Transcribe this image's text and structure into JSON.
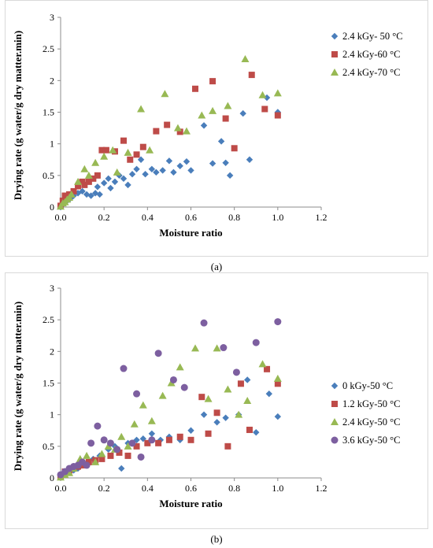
{
  "chart_data": [
    {
      "type": "scatter",
      "caption": "(a)",
      "xlabel": "Moisture ratio",
      "ylabel": "Drying rate (g water/g dry matter.min)",
      "xlim": [
        0,
        1.2
      ],
      "ylim": [
        0,
        3
      ],
      "xticks": [
        "0.0",
        "0.2",
        "0.4",
        "0.6",
        "0.8",
        "1.0",
        "1.2"
      ],
      "yticks": [
        "0",
        "0.5",
        "1",
        "1.5",
        "2",
        "2.5",
        "3"
      ],
      "grid": false,
      "legend": "right",
      "series": [
        {
          "name": "2.4 kGy- 50 °C",
          "marker": "diamond",
          "color": "#4a7ebb",
          "points": [
            [
              0.0,
              0.0
            ],
            [
              0.01,
              0.04
            ],
            [
              0.02,
              0.08
            ],
            [
              0.03,
              0.1
            ],
            [
              0.04,
              0.12
            ],
            [
              0.05,
              0.15
            ],
            [
              0.06,
              0.18
            ],
            [
              0.08,
              0.22
            ],
            [
              0.1,
              0.25
            ],
            [
              0.12,
              0.2
            ],
            [
              0.14,
              0.18
            ],
            [
              0.16,
              0.22
            ],
            [
              0.17,
              0.32
            ],
            [
              0.18,
              0.2
            ],
            [
              0.2,
              0.38
            ],
            [
              0.22,
              0.45
            ],
            [
              0.23,
              0.3
            ],
            [
              0.25,
              0.4
            ],
            [
              0.27,
              0.5
            ],
            [
              0.29,
              0.45
            ],
            [
              0.31,
              0.35
            ],
            [
              0.33,
              0.52
            ],
            [
              0.35,
              0.6
            ],
            [
              0.37,
              0.75
            ],
            [
              0.39,
              0.52
            ],
            [
              0.42,
              0.6
            ],
            [
              0.44,
              0.55
            ],
            [
              0.47,
              0.58
            ],
            [
              0.5,
              0.73
            ],
            [
              0.52,
              0.55
            ],
            [
              0.55,
              0.65
            ],
            [
              0.58,
              0.72
            ],
            [
              0.6,
              0.58
            ],
            [
              0.66,
              1.29
            ],
            [
              0.7,
              0.69
            ],
            [
              0.74,
              1.04
            ],
            [
              0.76,
              0.7
            ],
            [
              0.78,
              0.5
            ],
            [
              0.84,
              1.48
            ],
            [
              0.87,
              0.75
            ],
            [
              0.95,
              1.73
            ],
            [
              1.0,
              1.5
            ]
          ]
        },
        {
          "name": "2.4 kGy-60 °C",
          "marker": "square",
          "color": "#be4b48",
          "points": [
            [
              0.0,
              0.02
            ],
            [
              0.01,
              0.1
            ],
            [
              0.02,
              0.18
            ],
            [
              0.04,
              0.2
            ],
            [
              0.06,
              0.25
            ],
            [
              0.08,
              0.33
            ],
            [
              0.1,
              0.4
            ],
            [
              0.11,
              0.35
            ],
            [
              0.13,
              0.4
            ],
            [
              0.15,
              0.45
            ],
            [
              0.17,
              0.5
            ],
            [
              0.19,
              0.9
            ],
            [
              0.21,
              0.9
            ],
            [
              0.25,
              0.88
            ],
            [
              0.29,
              1.05
            ],
            [
              0.32,
              0.75
            ],
            [
              0.35,
              0.83
            ],
            [
              0.38,
              0.95
            ],
            [
              0.44,
              1.2
            ],
            [
              0.49,
              1.3
            ],
            [
              0.55,
              1.19
            ],
            [
              0.62,
              1.87
            ],
            [
              0.7,
              1.99
            ],
            [
              0.76,
              1.4
            ],
            [
              0.8,
              0.93
            ],
            [
              0.88,
              2.09
            ],
            [
              0.94,
              1.55
            ],
            [
              1.0,
              1.45
            ]
          ]
        },
        {
          "name": "2.4 kGy-70 °C",
          "marker": "triangle",
          "color": "#98b954",
          "points": [
            [
              0.0,
              0.01
            ],
            [
              0.01,
              0.06
            ],
            [
              0.02,
              0.08
            ],
            [
              0.03,
              0.12
            ],
            [
              0.04,
              0.15
            ],
            [
              0.05,
              0.2
            ],
            [
              0.08,
              0.4
            ],
            [
              0.11,
              0.6
            ],
            [
              0.13,
              0.5
            ],
            [
              0.16,
              0.7
            ],
            [
              0.2,
              0.8
            ],
            [
              0.24,
              0.9
            ],
            [
              0.26,
              0.55
            ],
            [
              0.31,
              0.86
            ],
            [
              0.37,
              1.55
            ],
            [
              0.41,
              0.9
            ],
            [
              0.48,
              1.79
            ],
            [
              0.54,
              1.25
            ],
            [
              0.58,
              1.2
            ],
            [
              0.65,
              1.45
            ],
            [
              0.7,
              1.52
            ],
            [
              0.77,
              1.6
            ],
            [
              0.85,
              2.34
            ],
            [
              0.93,
              1.77
            ],
            [
              1.0,
              1.8
            ]
          ]
        }
      ]
    },
    {
      "type": "scatter",
      "caption": "(b)",
      "xlabel": "Moisture ratio",
      "ylabel": "Drying rate (g water/g dry matter.min)",
      "xlim": [
        0,
        1.2
      ],
      "ylim": [
        0,
        3
      ],
      "xticks": [
        "0.0",
        "0.2",
        "0.4",
        "0.6",
        "0.8",
        "1.0",
        "1.2"
      ],
      "yticks": [
        "0",
        "0.5",
        "1",
        "1.5",
        "2",
        "2.5",
        "3"
      ],
      "grid": false,
      "legend": "right",
      "series": [
        {
          "name": "0 kGy-50 °C",
          "marker": "diamond",
          "color": "#4a7ebb",
          "points": [
            [
              0.0,
              0.02
            ],
            [
              0.02,
              0.05
            ],
            [
              0.04,
              0.08
            ],
            [
              0.06,
              0.12
            ],
            [
              0.08,
              0.15
            ],
            [
              0.1,
              0.2
            ],
            [
              0.12,
              0.22
            ],
            [
              0.15,
              0.3
            ],
            [
              0.18,
              0.35
            ],
            [
              0.22,
              0.45
            ],
            [
              0.25,
              0.5
            ],
            [
              0.28,
              0.15
            ],
            [
              0.31,
              0.55
            ],
            [
              0.35,
              0.6
            ],
            [
              0.38,
              0.62
            ],
            [
              0.42,
              0.7
            ],
            [
              0.46,
              0.6
            ],
            [
              0.5,
              0.65
            ],
            [
              0.55,
              0.6
            ],
            [
              0.6,
              0.75
            ],
            [
              0.66,
              1.0
            ],
            [
              0.72,
              0.88
            ],
            [
              0.76,
              0.95
            ],
            [
              0.82,
              1.0
            ],
            [
              0.86,
              1.55
            ],
            [
              0.9,
              0.72
            ],
            [
              0.96,
              1.33
            ],
            [
              1.0,
              0.97
            ]
          ]
        },
        {
          "name": "1.2 kGy-50 °C",
          "marker": "square",
          "color": "#be4b48",
          "points": [
            [
              0.0,
              0.02
            ],
            [
              0.02,
              0.1
            ],
            [
              0.04,
              0.12
            ],
            [
              0.06,
              0.15
            ],
            [
              0.08,
              0.18
            ],
            [
              0.1,
              0.2
            ],
            [
              0.13,
              0.25
            ],
            [
              0.16,
              0.28
            ],
            [
              0.19,
              0.3
            ],
            [
              0.23,
              0.35
            ],
            [
              0.27,
              0.4
            ],
            [
              0.31,
              0.35
            ],
            [
              0.35,
              0.5
            ],
            [
              0.4,
              0.55
            ],
            [
              0.45,
              0.55
            ],
            [
              0.5,
              0.6
            ],
            [
              0.55,
              0.65
            ],
            [
              0.6,
              0.6
            ],
            [
              0.65,
              1.28
            ],
            [
              0.68,
              0.7
            ],
            [
              0.72,
              1.03
            ],
            [
              0.77,
              0.5
            ],
            [
              0.83,
              1.49
            ],
            [
              0.87,
              0.76
            ],
            [
              0.95,
              1.72
            ],
            [
              1.0,
              1.49
            ]
          ]
        },
        {
          "name": "2.4 kGy-50 °C",
          "marker": "triangle",
          "color": "#98b954",
          "points": [
            [
              0.0,
              0.01
            ],
            [
              0.02,
              0.05
            ],
            [
              0.04,
              0.08
            ],
            [
              0.06,
              0.15
            ],
            [
              0.09,
              0.3
            ],
            [
              0.12,
              0.35
            ],
            [
              0.16,
              0.25
            ],
            [
              0.19,
              0.38
            ],
            [
              0.22,
              0.5
            ],
            [
              0.25,
              0.45
            ],
            [
              0.28,
              0.65
            ],
            [
              0.31,
              0.5
            ],
            [
              0.34,
              0.85
            ],
            [
              0.38,
              1.15
            ],
            [
              0.42,
              0.9
            ],
            [
              0.47,
              1.3
            ],
            [
              0.51,
              1.5
            ],
            [
              0.55,
              1.75
            ],
            [
              0.62,
              2.05
            ],
            [
              0.68,
              1.25
            ],
            [
              0.72,
              2.05
            ],
            [
              0.77,
              1.4
            ],
            [
              0.82,
              1.0
            ],
            [
              0.86,
              1.22
            ],
            [
              0.93,
              1.8
            ],
            [
              1.0,
              1.57
            ]
          ]
        },
        {
          "name": "3.6 kGy-50 °C",
          "marker": "circle",
          "color": "#7d5fa0",
          "points": [
            [
              0.0,
              0.05
            ],
            [
              0.02,
              0.1
            ],
            [
              0.04,
              0.15
            ],
            [
              0.06,
              0.18
            ],
            [
              0.08,
              0.2
            ],
            [
              0.1,
              0.25
            ],
            [
              0.12,
              0.2
            ],
            [
              0.14,
              0.55
            ],
            [
              0.17,
              0.82
            ],
            [
              0.2,
              0.6
            ],
            [
              0.23,
              0.55
            ],
            [
              0.26,
              0.45
            ],
            [
              0.29,
              1.73
            ],
            [
              0.33,
              0.55
            ],
            [
              0.35,
              1.33
            ],
            [
              0.37,
              0.33
            ],
            [
              0.42,
              0.6
            ],
            [
              0.45,
              1.97
            ],
            [
              0.52,
              1.55
            ],
            [
              0.57,
              1.43
            ],
            [
              0.66,
              2.45
            ],
            [
              0.75,
              2.06
            ],
            [
              0.81,
              1.67
            ],
            [
              0.9,
              2.14
            ],
            [
              1.0,
              2.47
            ]
          ]
        }
      ]
    }
  ]
}
